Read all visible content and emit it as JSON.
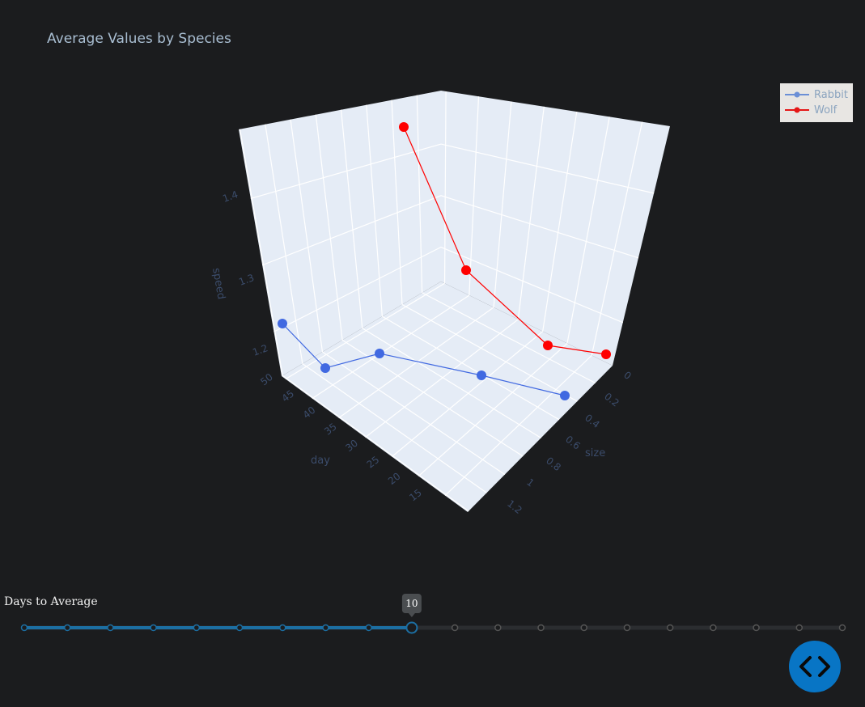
{
  "chart_data": {
    "type": "scatter3d",
    "title": "Average Values by Species",
    "axes": {
      "x": {
        "label": "size",
        "ticks": [
          "0",
          "0.2",
          "0.4",
          "0.6",
          "0.8",
          "1",
          "1.2"
        ]
      },
      "y": {
        "label": "day",
        "ticks": [
          "50",
          "45",
          "40",
          "35",
          "30",
          "25",
          "20",
          "15"
        ]
      },
      "z": {
        "label": "speed",
        "ticks": [
          "1.2",
          "1.3",
          "1.4"
        ]
      }
    },
    "series": [
      {
        "name": "Rabbit",
        "color": "#4169e1",
        "points": [
          {
            "size": 0.9,
            "day": 50,
            "speed": 1.25
          },
          {
            "size": 1.0,
            "day": 40,
            "speed": 1.22
          },
          {
            "size": 0.9,
            "day": 30,
            "speed": 1.24
          },
          {
            "size": 0.9,
            "day": 20,
            "speed": 1.25
          },
          {
            "size": 1.0,
            "day": 10,
            "speed": 1.24
          }
        ]
      },
      {
        "name": "Wolf",
        "color": "#ff0000",
        "points": [
          {
            "size": 1.0,
            "day": 50,
            "speed": 1.45
          },
          {
            "size": 1.0,
            "day": 40,
            "speed": 1.32
          },
          {
            "size": 0.6,
            "day": 30,
            "speed": 1.24
          },
          {
            "size": 0.45,
            "day": 20,
            "speed": 1.23
          }
        ]
      }
    ],
    "legend": {
      "position": "top-right",
      "items": [
        "Rabbit",
        "Wolf"
      ]
    }
  },
  "slider": {
    "label": "Days to Average",
    "current_value": "10",
    "steps": 20,
    "selected_index": 9,
    "active_color": "#1c6fa3",
    "inactive_color": "#555555"
  },
  "fab": {
    "icon": "code-icon",
    "color": "#0875c5"
  }
}
